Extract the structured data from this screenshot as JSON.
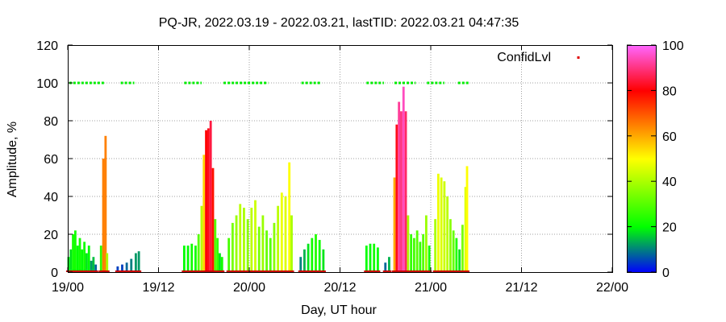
{
  "chart_data": {
    "type": "bar",
    "title": "PQ-JR, 2022.03.19 - 2022.03.21, lastTID: 2022.03.21 04:47:35",
    "xlabel": "Day, UT hour",
    "ylabel": "Amplitude, %",
    "xlim": [
      0,
      72
    ],
    "ylim": [
      0,
      120
    ],
    "xticks": [
      {
        "x": 0,
        "label": "19/00"
      },
      {
        "x": 12,
        "label": "19/12"
      },
      {
        "x": 24,
        "label": "20/00"
      },
      {
        "x": 36,
        "label": "20/12"
      },
      {
        "x": 48,
        "label": "21/00"
      },
      {
        "x": 60,
        "label": "21/12"
      },
      {
        "x": 72,
        "label": "22/00"
      }
    ],
    "yticks": [
      0,
      20,
      40,
      60,
      80,
      100,
      120
    ],
    "grid": true,
    "legend": {
      "label": "ConfidLvl",
      "position": "top-right"
    },
    "colorbar": {
      "min": 0,
      "max": 100,
      "ticks": [
        0,
        20,
        40,
        60,
        80,
        100
      ],
      "colors": [
        "#0000ff",
        "#00ff00",
        "#ffff00",
        "#ff0000",
        "#ff66ff"
      ]
    },
    "series": [
      {
        "type": "amplitude_bars",
        "points": [
          [
            0.1,
            8,
            18
          ],
          [
            0.4,
            12,
            18
          ],
          [
            0.7,
            20,
            22
          ],
          [
            1.0,
            22,
            22
          ],
          [
            1.3,
            14,
            20
          ],
          [
            1.6,
            18,
            22
          ],
          [
            1.9,
            12,
            20
          ],
          [
            2.2,
            16,
            22
          ],
          [
            2.5,
            10,
            18
          ],
          [
            2.8,
            14,
            20
          ],
          [
            3.1,
            6,
            12
          ],
          [
            3.4,
            8,
            15
          ],
          [
            3.7,
            4,
            8
          ],
          [
            4.4,
            14,
            25
          ],
          [
            4.7,
            60,
            65
          ],
          [
            5.0,
            72,
            65
          ],
          [
            5.2,
            10,
            40
          ],
          [
            6.6,
            3,
            5
          ],
          [
            7.2,
            4,
            5
          ],
          [
            7.8,
            5,
            8
          ],
          [
            8.4,
            7,
            10
          ],
          [
            9.0,
            10,
            12
          ],
          [
            9.4,
            11,
            12
          ],
          [
            15.4,
            14,
            20
          ],
          [
            15.9,
            14,
            20
          ],
          [
            16.4,
            15,
            22
          ],
          [
            16.9,
            14,
            22
          ],
          [
            17.3,
            20,
            30
          ],
          [
            17.7,
            35,
            42
          ],
          [
            18.0,
            62,
            55
          ],
          [
            18.3,
            75,
            80
          ],
          [
            18.6,
            76,
            82
          ],
          [
            18.9,
            80,
            85
          ],
          [
            19.2,
            55,
            78
          ],
          [
            19.5,
            28,
            30
          ],
          [
            19.8,
            18,
            26
          ],
          [
            20.1,
            10,
            18
          ],
          [
            20.4,
            8,
            22
          ],
          [
            21.3,
            18,
            28
          ],
          [
            21.8,
            26,
            34
          ],
          [
            22.3,
            30,
            38
          ],
          [
            22.8,
            36,
            42
          ],
          [
            23.3,
            34,
            40
          ],
          [
            23.8,
            28,
            36
          ],
          [
            24.3,
            34,
            42
          ],
          [
            24.8,
            38,
            44
          ],
          [
            25.3,
            24,
            34
          ],
          [
            25.8,
            30,
            38
          ],
          [
            26.3,
            22,
            32
          ],
          [
            26.8,
            18,
            30
          ],
          [
            27.3,
            26,
            36
          ],
          [
            27.8,
            35,
            42
          ],
          [
            28.3,
            42,
            48
          ],
          [
            28.8,
            40,
            46
          ],
          [
            29.3,
            58,
            50
          ],
          [
            29.6,
            30,
            40
          ],
          [
            30.8,
            8,
            10
          ],
          [
            31.3,
            12,
            14
          ],
          [
            31.8,
            15,
            18
          ],
          [
            32.3,
            18,
            22
          ],
          [
            32.8,
            20,
            24
          ],
          [
            33.3,
            17,
            22
          ],
          [
            33.8,
            12,
            18
          ],
          [
            39.5,
            14,
            20
          ],
          [
            40.0,
            15,
            20
          ],
          [
            40.5,
            15,
            22
          ],
          [
            41.0,
            13,
            20
          ],
          [
            42.0,
            5,
            8
          ],
          [
            42.5,
            8,
            14
          ],
          [
            43.2,
            50,
            60
          ],
          [
            43.5,
            78,
            82
          ],
          [
            43.8,
            90,
            92
          ],
          [
            44.1,
            85,
            90
          ],
          [
            44.4,
            98,
            95
          ],
          [
            44.7,
            85,
            88
          ],
          [
            45.0,
            30,
            40
          ],
          [
            45.4,
            20,
            26
          ],
          [
            45.8,
            18,
            28
          ],
          [
            46.2,
            22,
            30
          ],
          [
            46.6,
            16,
            26
          ],
          [
            47.0,
            20,
            30
          ],
          [
            47.4,
            30,
            38
          ],
          [
            47.8,
            14,
            22
          ],
          [
            48.6,
            28,
            40
          ],
          [
            49.0,
            52,
            48
          ],
          [
            49.4,
            50,
            46
          ],
          [
            49.8,
            48,
            44
          ],
          [
            50.2,
            40,
            42
          ],
          [
            50.6,
            28,
            36
          ],
          [
            51.0,
            22,
            32
          ],
          [
            51.4,
            18,
            24
          ],
          [
            51.8,
            12,
            18
          ],
          [
            52.2,
            25,
            34
          ],
          [
            52.6,
            45,
            46
          ],
          [
            52.8,
            56,
            50
          ]
        ]
      },
      {
        "type": "confid_level",
        "value": 100,
        "segments": [
          [
            0.2,
            4.8
          ],
          [
            7.0,
            8.8
          ],
          [
            15.4,
            17.7
          ],
          [
            20.6,
            26.5
          ],
          [
            30.9,
            33.5
          ],
          [
            39.5,
            41.8
          ],
          [
            43.2,
            46.0
          ],
          [
            47.5,
            49.8
          ],
          [
            51.6,
            53.0
          ]
        ]
      }
    ]
  }
}
